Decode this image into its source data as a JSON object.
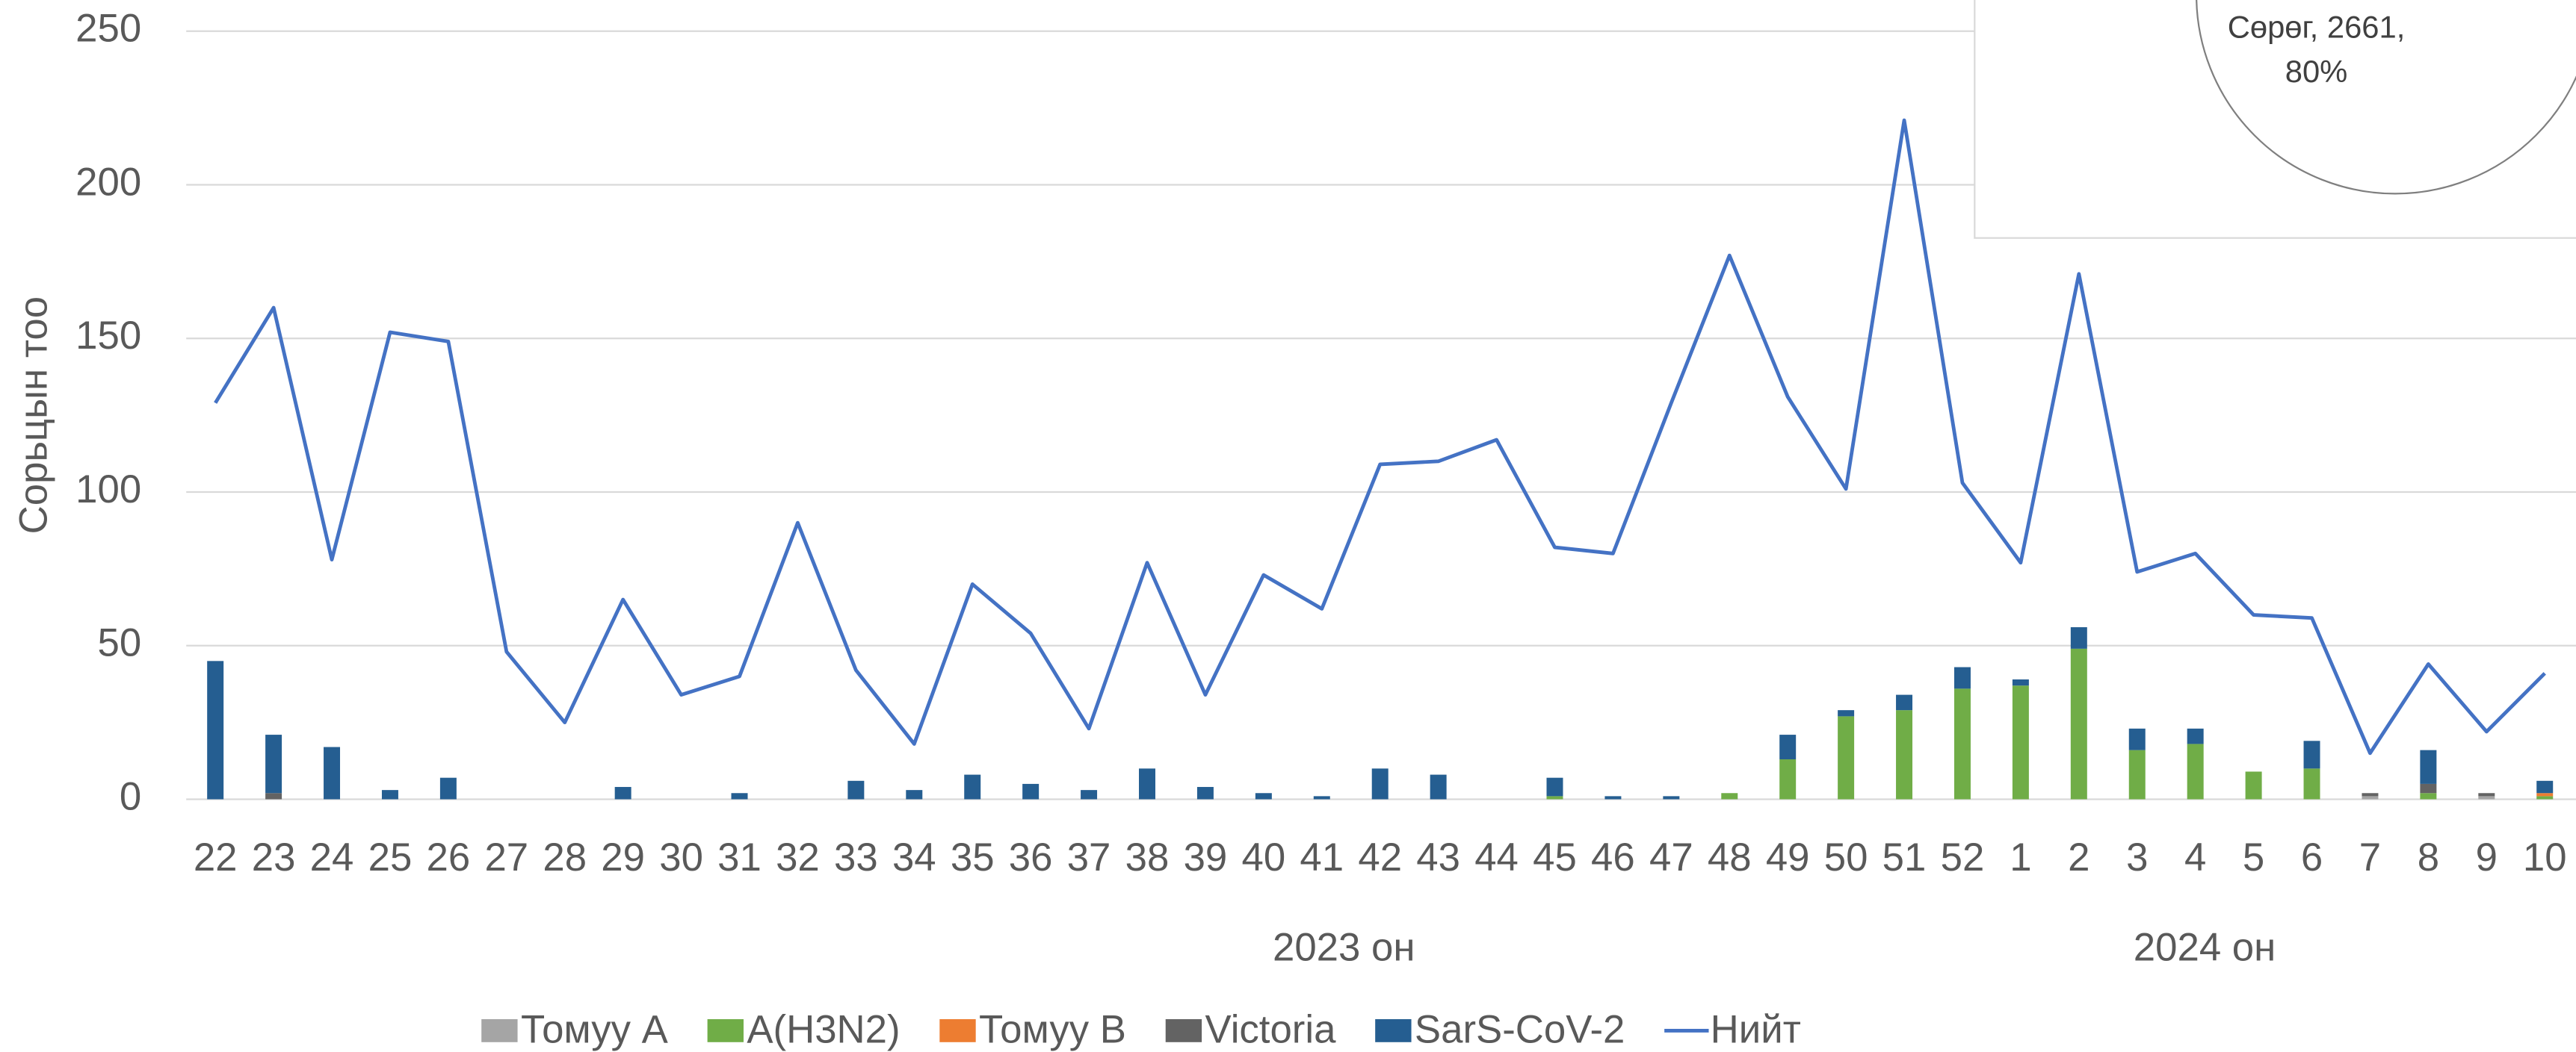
{
  "chart_data": {
    "type": "bar_line",
    "y_label": "Сорьцын тоо",
    "categories": [
      "22",
      "23",
      "24",
      "25",
      "26",
      "27",
      "28",
      "29",
      "30",
      "31",
      "32",
      "33",
      "34",
      "35",
      "36",
      "37",
      "38",
      "39",
      "40",
      "41",
      "42",
      "43",
      "44",
      "45",
      "46",
      "47",
      "48",
      "49",
      "50",
      "51",
      "52",
      "1",
      "2",
      "3",
      "4",
      "5",
      "6",
      "7",
      "8",
      "9",
      "10"
    ],
    "x_group_labels": [
      "2023 он",
      "2024 он"
    ],
    "ylim": [
      0,
      250
    ],
    "yticks": [
      0,
      50,
      100,
      150,
      200,
      250
    ],
    "grid": true,
    "legend": "bottom",
    "stacked": true,
    "series": [
      {
        "name": "Томуу A",
        "color": "#a5a5a5",
        "kind": "bar",
        "values": [
          0,
          0,
          0,
          0,
          0,
          0,
          0,
          0,
          0,
          0,
          0,
          0,
          0,
          0,
          0,
          0,
          0,
          0,
          0,
          0,
          0,
          0,
          0,
          0,
          0,
          0,
          0,
          0,
          0,
          0,
          0,
          0,
          0,
          0,
          0,
          0,
          0,
          1,
          0,
          1,
          0
        ]
      },
      {
        "name": "A(H3N2)",
        "color": "#70ad47",
        "kind": "bar",
        "values": [
          0,
          0,
          0,
          0,
          0,
          0,
          0,
          0,
          0,
          0,
          0,
          0,
          0,
          0,
          0,
          0,
          0,
          0,
          0,
          0,
          0,
          0,
          0,
          1,
          0,
          0,
          2,
          13,
          27,
          29,
          36,
          37,
          49,
          16,
          18,
          9,
          10,
          0,
          2,
          0,
          1
        ]
      },
      {
        "name": "Томуу B",
        "color": "#ed7d31",
        "kind": "bar",
        "values": [
          0,
          0,
          0,
          0,
          0,
          0,
          0,
          0,
          0,
          0,
          0,
          0,
          0,
          0,
          0,
          0,
          0,
          0,
          0,
          0,
          0,
          0,
          0,
          0,
          0,
          0,
          0,
          0,
          0,
          0,
          0,
          0,
          0,
          0,
          0,
          0,
          0,
          0,
          0,
          0,
          1
        ]
      },
      {
        "name": "Victoria",
        "color": "#636363",
        "kind": "bar",
        "values": [
          0,
          2,
          0,
          0,
          0,
          0,
          0,
          0,
          0,
          0,
          0,
          0,
          0,
          0,
          0,
          0,
          0,
          0,
          0,
          0,
          0,
          0,
          0,
          0,
          0,
          0,
          0,
          0,
          0,
          0,
          0,
          0,
          0,
          0,
          0,
          0,
          0,
          1,
          3,
          1,
          0
        ]
      },
      {
        "name": "SarS-CoV-2",
        "color": "#255e91",
        "kind": "bar",
        "values": [
          45,
          19,
          17,
          3,
          7,
          0,
          0,
          4,
          0,
          2,
          0,
          6,
          3,
          8,
          5,
          3,
          10,
          4,
          2,
          1,
          10,
          8,
          0,
          6,
          1,
          1,
          0,
          8,
          2,
          5,
          7,
          2,
          7,
          7,
          5,
          0,
          9,
          0,
          11,
          0,
          4
        ]
      },
      {
        "name": "Нийт",
        "color": "#4472c4",
        "kind": "line",
        "values": [
          129,
          160,
          78,
          152,
          149,
          48,
          25,
          65,
          34,
          40,
          90,
          42,
          18,
          70,
          54,
          23,
          77,
          34,
          73,
          62,
          109,
          110,
          117,
          82,
          80,
          129,
          177,
          131,
          101,
          221,
          103,
          77,
          171,
          74,
          80,
          60,
          59,
          15,
          44,
          22,
          41
        ]
      }
    ],
    "inset_pie_label": [
      "Сөрөг, 2661,",
      "80%"
    ]
  }
}
